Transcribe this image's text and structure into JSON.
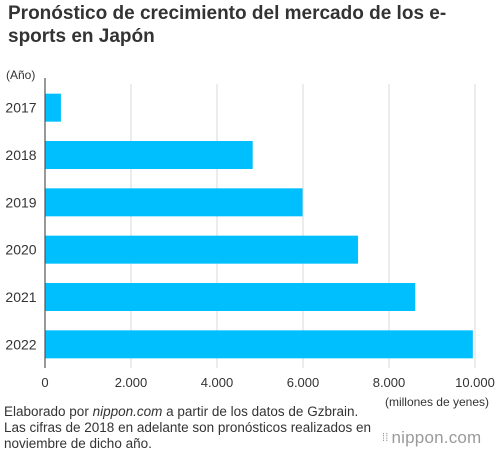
{
  "chart_data": {
    "type": "bar",
    "orientation": "horizontal",
    "title": "Pronóstico de crecimiento del mercado de los e-sports en Japón",
    "ylabel": "(Año)",
    "xlabel": "(millones de yenes)",
    "categories": [
      "2017",
      "2018",
      "2019",
      "2020",
      "2021",
      "2022"
    ],
    "values": [
      370,
      4830,
      5990,
      7280,
      8610,
      9950
    ],
    "xlim": [
      0,
      10000
    ],
    "xticks": [
      0,
      2000,
      4000,
      6000,
      8000,
      10000
    ],
    "xtick_labels": [
      "0",
      "2.000",
      "4.000",
      "6.000",
      "8.000",
      "10.000"
    ],
    "grid": true,
    "bar_color": "#00bfff",
    "grid_color": "#d9d9d9"
  },
  "footer": {
    "source_prefix": "Elaborado por ",
    "source_site": "nippon.com",
    "source_suffix": " a partir de los datos de Gzbrain.",
    "note": "Las cifras de 2018 en adelante son pronósticos realizados en noviembre de dicho año."
  },
  "brand": {
    "icon": "dots-icon",
    "name": "nippon.com"
  }
}
